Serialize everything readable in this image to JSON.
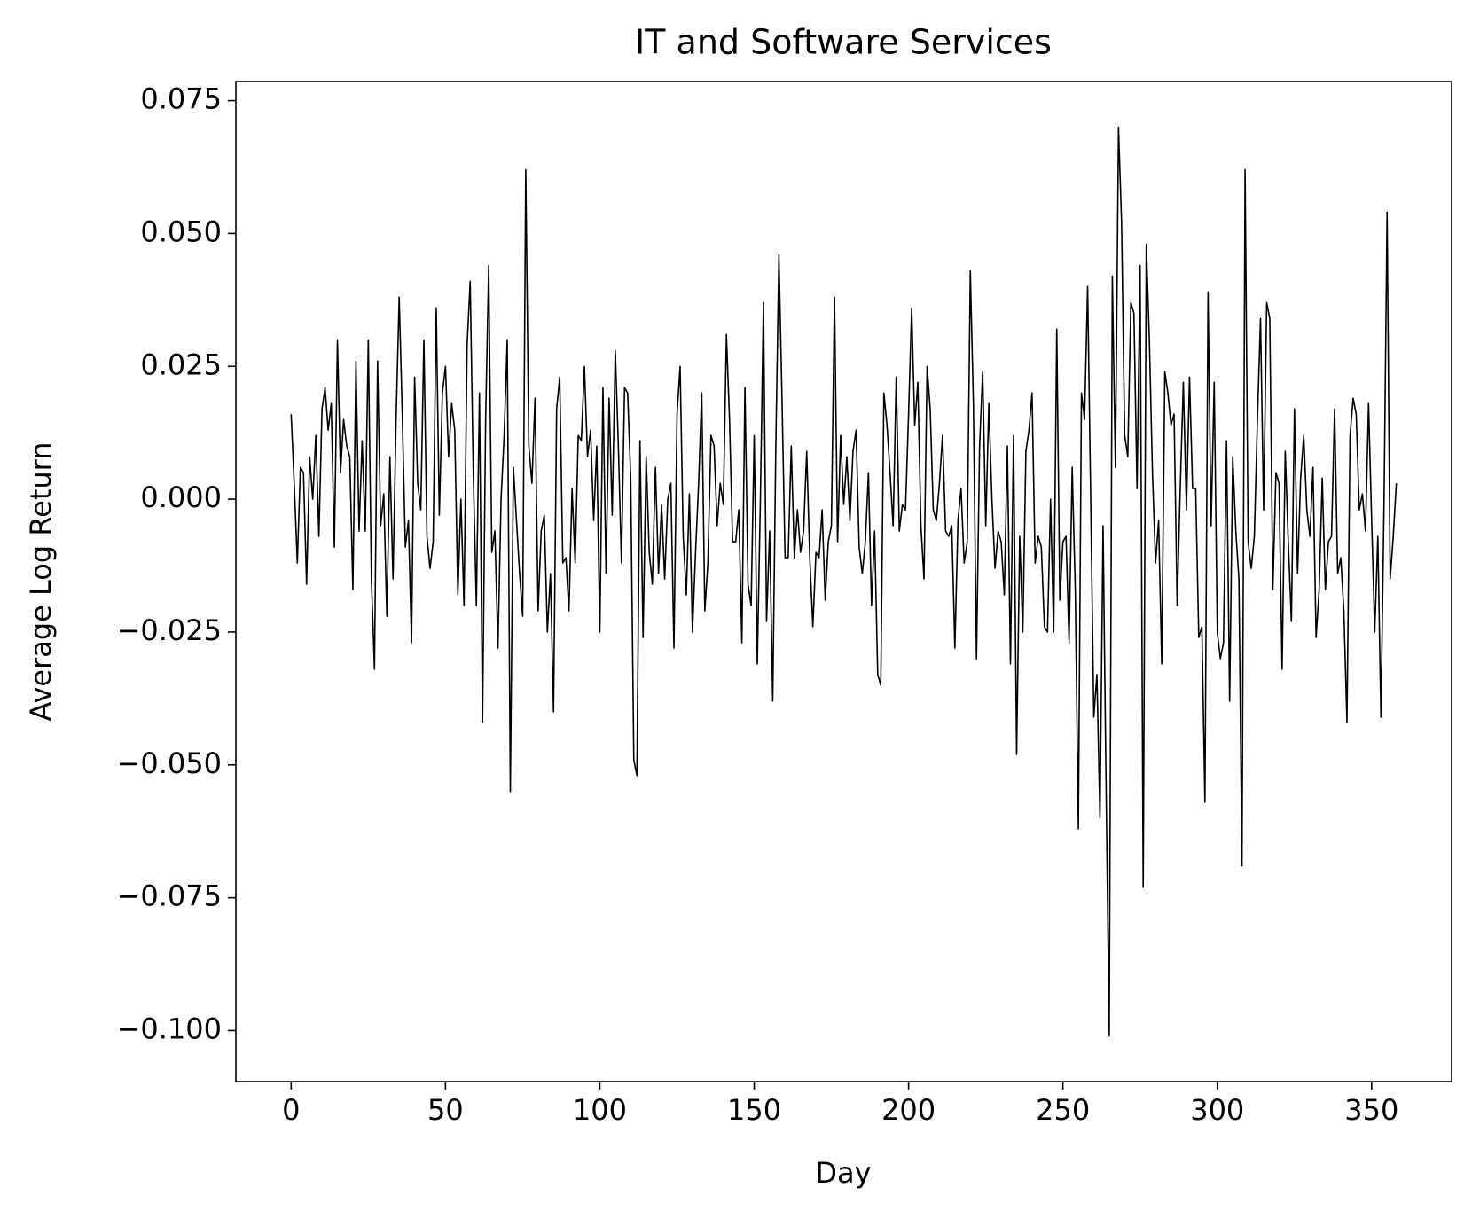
{
  "chart_data": {
    "type": "line",
    "title": "IT and Software Services",
    "x_label": "Day",
    "y_label": "Average Log Return",
    "x": [
      0,
      1,
      2,
      3,
      4,
      5,
      6,
      7,
      8,
      9,
      10,
      11,
      12,
      13,
      14,
      15,
      16,
      17,
      18,
      19,
      20,
      21,
      22,
      23,
      24,
      25,
      26,
      27,
      28,
      29,
      30,
      31,
      32,
      33,
      34,
      35,
      36,
      37,
      38,
      39,
      40,
      41,
      42,
      43,
      44,
      45,
      46,
      47,
      48,
      49,
      50,
      51,
      52,
      53,
      54,
      55,
      56,
      57,
      58,
      59,
      60,
      61,
      62,
      63,
      64,
      65,
      66,
      67,
      68,
      69,
      70,
      71,
      72,
      73,
      74,
      75,
      76,
      77,
      78,
      79,
      80,
      81,
      82,
      83,
      84,
      85,
      86,
      87,
      88,
      89,
      90,
      91,
      92,
      93,
      94,
      95,
      96,
      97,
      98,
      99,
      100,
      101,
      102,
      103,
      104,
      105,
      106,
      107,
      108,
      109,
      110,
      111,
      112,
      113,
      114,
      115,
      116,
      117,
      118,
      119,
      120,
      121,
      122,
      123,
      124,
      125,
      126,
      127,
      128,
      129,
      130,
      131,
      132,
      133,
      134,
      135,
      136,
      137,
      138,
      139,
      140,
      141,
      142,
      143,
      144,
      145,
      146,
      147,
      148,
      149,
      150,
      151,
      152,
      153,
      154,
      155,
      156,
      157,
      158,
      159,
      160,
      161,
      162,
      163,
      164,
      165,
      166,
      167,
      168,
      169,
      170,
      171,
      172,
      173,
      174,
      175,
      176,
      177,
      178,
      179,
      180,
      181,
      182,
      183,
      184,
      185,
      186,
      187,
      188,
      189,
      190,
      191,
      192,
      193,
      194,
      195,
      196,
      197,
      198,
      199,
      200,
      201,
      202,
      203,
      204,
      205,
      206,
      207,
      208,
      209,
      210,
      211,
      212,
      213,
      214,
      215,
      216,
      217,
      218,
      219,
      220,
      221,
      222,
      223,
      224,
      225,
      226,
      227,
      228,
      229,
      230,
      231,
      232,
      233,
      234,
      235,
      236,
      237,
      238,
      239,
      240,
      241,
      242,
      243,
      244,
      245,
      246,
      247,
      248,
      249,
      250,
      251,
      252,
      253,
      254,
      255,
      256,
      257,
      258,
      259,
      260,
      261,
      262,
      263,
      264,
      265,
      266,
      267,
      268,
      269,
      270,
      271,
      272,
      273,
      274,
      275,
      276,
      277,
      278,
      279,
      280,
      281,
      282,
      283,
      284,
      285,
      286,
      287,
      288,
      289,
      290,
      291,
      292,
      293,
      294,
      295,
      296,
      297,
      298,
      299,
      300,
      301,
      302,
      303,
      304,
      305,
      306,
      307,
      308,
      309,
      310,
      311,
      312,
      313,
      314,
      315,
      316,
      317,
      318,
      319,
      320,
      321,
      322,
      323,
      324,
      325,
      326,
      327,
      328,
      329,
      330,
      331,
      332,
      333,
      334,
      335,
      336,
      337,
      338,
      339,
      340,
      341,
      342,
      343,
      344,
      345,
      346,
      347,
      348,
      349,
      350,
      351,
      352,
      353,
      354,
      355,
      356,
      357,
      358
    ],
    "series": [
      {
        "color": "#000000",
        "values": [
          0.016,
          0.003,
          -0.012,
          0.006,
          0.005,
          -0.016,
          0.008,
          0.0,
          0.012,
          -0.007,
          0.017,
          0.021,
          0.013,
          0.018,
          -0.009,
          0.03,
          0.005,
          0.015,
          0.01,
          0.008,
          -0.017,
          0.026,
          -0.006,
          0.011,
          -0.006,
          0.03,
          -0.015,
          -0.032,
          0.026,
          -0.005,
          0.001,
          -0.022,
          0.008,
          -0.015,
          0.015,
          0.038,
          0.016,
          -0.009,
          -0.004,
          -0.027,
          0.023,
          0.003,
          -0.002,
          0.03,
          -0.007,
          -0.013,
          -0.008,
          0.036,
          -0.003,
          0.02,
          0.025,
          0.008,
          0.018,
          0.013,
          -0.018,
          0.0,
          -0.02,
          0.029,
          0.041,
          0.005,
          -0.02,
          0.02,
          -0.042,
          0.015,
          0.044,
          -0.01,
          -0.006,
          -0.028,
          0.0,
          0.012,
          0.03,
          -0.055,
          0.006,
          -0.004,
          -0.014,
          -0.022,
          0.062,
          0.01,
          0.003,
          0.019,
          -0.021,
          -0.006,
          -0.003,
          -0.025,
          -0.014,
          -0.04,
          0.017,
          0.023,
          -0.012,
          -0.011,
          -0.021,
          0.002,
          -0.012,
          0.012,
          0.011,
          0.025,
          0.008,
          0.013,
          -0.004,
          0.01,
          -0.025,
          0.021,
          -0.014,
          0.019,
          -0.003,
          0.028,
          0.01,
          -0.012,
          0.021,
          0.02,
          0.004,
          -0.049,
          -0.052,
          0.011,
          -0.026,
          0.008,
          -0.01,
          -0.016,
          0.006,
          -0.014,
          -0.001,
          -0.015,
          0.0,
          0.003,
          -0.028,
          0.016,
          0.025,
          -0.007,
          -0.018,
          0.001,
          -0.025,
          -0.01,
          0.003,
          0.02,
          -0.021,
          -0.012,
          0.012,
          0.01,
          -0.005,
          0.003,
          -0.001,
          0.031,
          0.015,
          -0.008,
          -0.008,
          -0.002,
          -0.027,
          0.021,
          -0.016,
          -0.02,
          0.012,
          -0.031,
          0.0,
          0.037,
          -0.023,
          -0.006,
          -0.038,
          0.01,
          0.046,
          0.019,
          -0.011,
          -0.011,
          0.01,
          -0.011,
          -0.002,
          -0.01,
          -0.006,
          0.009,
          -0.011,
          -0.024,
          -0.01,
          -0.011,
          -0.002,
          -0.019,
          -0.008,
          -0.005,
          0.038,
          -0.008,
          0.012,
          -0.001,
          0.008,
          -0.004,
          0.009,
          0.013,
          -0.009,
          -0.014,
          -0.008,
          0.005,
          -0.02,
          -0.006,
          -0.033,
          -0.035,
          0.02,
          0.014,
          0.005,
          -0.005,
          0.023,
          -0.006,
          -0.001,
          -0.002,
          0.016,
          0.036,
          0.014,
          0.022,
          -0.005,
          -0.015,
          0.025,
          0.017,
          -0.002,
          -0.004,
          0.003,
          0.012,
          -0.006,
          -0.007,
          -0.005,
          -0.028,
          -0.004,
          0.002,
          -0.012,
          -0.008,
          0.043,
          0.018,
          -0.03,
          0.01,
          0.024,
          -0.005,
          0.018,
          0.0,
          -0.013,
          -0.006,
          -0.008,
          -0.018,
          0.01,
          -0.031,
          0.012,
          -0.048,
          -0.007,
          -0.025,
          0.009,
          0.013,
          0.02,
          -0.012,
          -0.007,
          -0.009,
          -0.024,
          -0.025,
          0.0,
          -0.025,
          0.032,
          -0.019,
          -0.008,
          -0.007,
          -0.027,
          0.006,
          -0.017,
          -0.062,
          0.02,
          0.015,
          0.04,
          0.0,
          -0.041,
          -0.033,
          -0.06,
          -0.005,
          -0.055,
          -0.101,
          0.042,
          0.006,
          0.07,
          0.052,
          0.012,
          0.008,
          0.037,
          0.035,
          0.002,
          0.044,
          -0.073,
          0.048,
          0.03,
          0.005,
          -0.012,
          -0.004,
          -0.031,
          0.024,
          0.02,
          0.014,
          0.016,
          -0.02,
          0.002,
          0.022,
          -0.002,
          0.023,
          0.002,
          0.002,
          -0.026,
          -0.024,
          -0.057,
          0.039,
          -0.005,
          0.022,
          -0.025,
          -0.03,
          -0.027,
          0.011,
          -0.038,
          0.008,
          -0.006,
          -0.015,
          -0.069,
          0.062,
          -0.008,
          -0.013,
          -0.007,
          0.015,
          0.034,
          -0.002,
          0.037,
          0.034,
          -0.017,
          0.005,
          0.003,
          -0.032,
          0.009,
          -0.008,
          -0.023,
          0.017,
          -0.014,
          0.004,
          0.012,
          -0.002,
          -0.007,
          0.006,
          -0.026,
          -0.017,
          0.004,
          -0.017,
          -0.008,
          -0.007,
          0.017,
          -0.014,
          -0.011,
          -0.021,
          -0.042,
          0.012,
          0.019,
          0.016,
          -0.002,
          0.001,
          -0.006,
          0.018,
          -0.004,
          -0.025,
          -0.007,
          -0.041,
          -0.001,
          0.054,
          -0.015,
          -0.007,
          0.003
        ]
      }
    ],
    "xlim": [
      -17.9,
      375.9
    ],
    "xticks": [
      0,
      50,
      100,
      150,
      200,
      250,
      300,
      350
    ],
    "ylim": [
      -0.1096,
      0.0786
    ],
    "yticks": [
      {
        "value": -0.1,
        "label": "−0.100"
      },
      {
        "value": -0.075,
        "label": "−0.075"
      },
      {
        "value": -0.05,
        "label": "−0.050"
      },
      {
        "value": -0.025,
        "label": "−0.025"
      },
      {
        "value": 0,
        "label": "0.000"
      },
      0.025,
      {
        "value": 0.05,
        "label": "0.050"
      },
      0.075
    ]
  }
}
